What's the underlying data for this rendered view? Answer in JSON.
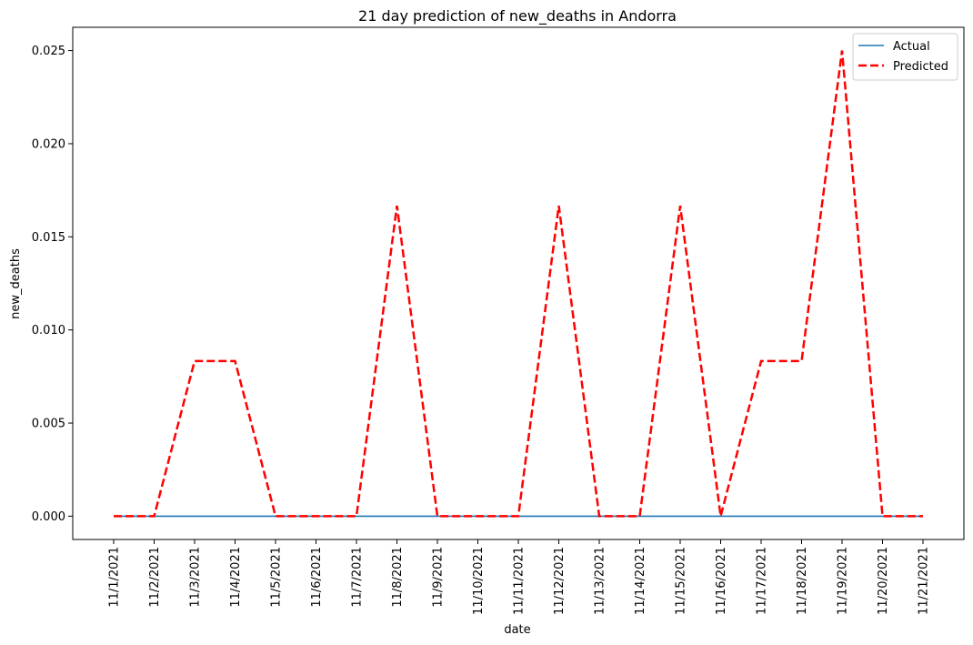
{
  "chart_data": {
    "type": "line",
    "title": "21 day prediction of new_deaths in Andorra",
    "xlabel": "date",
    "ylabel": "new_deaths",
    "categories": [
      "11/1/2021",
      "11/2/2021",
      "11/3/2021",
      "11/4/2021",
      "11/5/2021",
      "11/6/2021",
      "11/7/2021",
      "11/8/2021",
      "11/9/2021",
      "11/10/2021",
      "11/11/2021",
      "11/12/2021",
      "11/13/2021",
      "11/14/2021",
      "11/15/2021",
      "11/16/2021",
      "11/17/2021",
      "11/18/2021",
      "11/19/2021",
      "11/20/2021",
      "11/21/2021"
    ],
    "ylim": [
      -0.00125,
      0.02625
    ],
    "yticks": [
      0.0,
      0.005,
      0.01,
      0.015,
      0.02,
      0.025
    ],
    "ytick_labels": [
      "0.000",
      "0.005",
      "0.010",
      "0.015",
      "0.020",
      "0.025"
    ],
    "series": [
      {
        "name": "Actual",
        "color": "#1f77b4",
        "style": "solid",
        "values": [
          0,
          0,
          0,
          0,
          0,
          0,
          0,
          0,
          0,
          0,
          0,
          0,
          0,
          0,
          0,
          0,
          0,
          0,
          0,
          0,
          0
        ]
      },
      {
        "name": "Predicted",
        "color": "#ff0000",
        "style": "dashed",
        "values": [
          0,
          0,
          0.00833,
          0.00833,
          0,
          0,
          0,
          0.01667,
          0,
          0,
          0,
          0.01667,
          0,
          0,
          0.01667,
          0,
          0.00833,
          0.00833,
          0.025,
          0,
          0
        ]
      }
    ],
    "legend": "top-right",
    "grid": false
  }
}
